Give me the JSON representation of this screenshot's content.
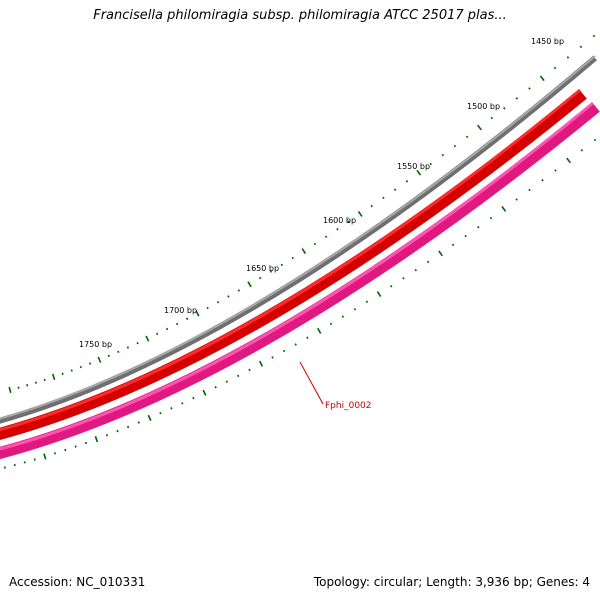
{
  "title": "Francisella philomiragia subsp. philomiragia ATCC 25017 plas...",
  "footer": {
    "accession": "Accession: NC_010331",
    "summary": "Topology: circular; Length: 3,936 bp; Genes: 4"
  },
  "map": {
    "tick_labels": [
      {
        "bp": 1450,
        "text": "1450 bp"
      },
      {
        "bp": 1500,
        "text": "1500 bp"
      },
      {
        "bp": 1550,
        "text": "1550 bp"
      },
      {
        "bp": 1600,
        "text": "1600 bp"
      },
      {
        "bp": 1650,
        "text": "1650 bp"
      },
      {
        "bp": 1700,
        "text": "1700 bp"
      },
      {
        "bp": 1750,
        "text": "1750 bp"
      }
    ],
    "gene_label": "Fphi_0002",
    "colors": {
      "backbone": "#808080",
      "forward_gene": "#ee0000",
      "reverse_gene": "#ff3399",
      "ticks": "#006400",
      "gene_label": "#cc0000"
    }
  }
}
